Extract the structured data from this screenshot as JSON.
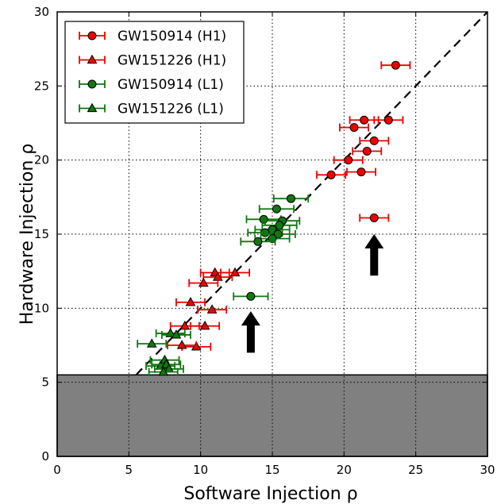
{
  "chart_data": {
    "type": "scatter",
    "xlabel": "Software Injection ρ",
    "ylabel": "Hardware Injection ρ",
    "xlim": [
      0,
      30
    ],
    "ylim": [
      0,
      30
    ],
    "x_ticks": [
      "0",
      "5",
      "10",
      "15",
      "20",
      "25",
      "30"
    ],
    "y_ticks": [
      "0",
      "5",
      "10",
      "15",
      "20",
      "25",
      "30"
    ],
    "grid": true,
    "legend_position": "top-left",
    "reference_line": {
      "style": "dashed",
      "color": "#000000",
      "from": [
        5.5,
        5.5
      ],
      "to": [
        30,
        30
      ]
    },
    "shaded_region": {
      "y_min": 0,
      "y_max": 5.5,
      "color": "#808080"
    },
    "arrows": [
      {
        "x": 13.5,
        "y_from": 7.0,
        "y_to": 9.8
      },
      {
        "x": 22.1,
        "y_from": 12.2,
        "y_to": 15.0
      }
    ],
    "series": [
      {
        "name": "GW150914 (H1)",
        "marker": "circle",
        "color": "#ee0000",
        "points": [
          {
            "x": 23.6,
            "y": 26.4,
            "xerr": 1.0
          },
          {
            "x": 21.4,
            "y": 22.7,
            "xerr": 1.0
          },
          {
            "x": 23.1,
            "y": 22.7,
            "xerr": 1.0
          },
          {
            "x": 20.7,
            "y": 22.2,
            "xerr": 1.0
          },
          {
            "x": 22.1,
            "y": 21.3,
            "xerr": 1.0
          },
          {
            "x": 21.6,
            "y": 20.6,
            "xerr": 1.0
          },
          {
            "x": 20.3,
            "y": 20.0,
            "xerr": 1.0
          },
          {
            "x": 19.1,
            "y": 19.0,
            "xerr": 1.0
          },
          {
            "x": 21.2,
            "y": 19.2,
            "xerr": 1.0
          },
          {
            "x": 22.1,
            "y": 16.1,
            "xerr": 1.0
          }
        ]
      },
      {
        "name": "GW151226 (H1)",
        "marker": "triangle",
        "color": "#ee0000",
        "points": [
          {
            "x": 12.4,
            "y": 12.4,
            "xerr": 1.0
          },
          {
            "x": 11.0,
            "y": 12.4,
            "xerr": 1.0
          },
          {
            "x": 11.2,
            "y": 12.1,
            "xerr": 1.0
          },
          {
            "x": 10.2,
            "y": 11.7,
            "xerr": 1.0
          },
          {
            "x": 9.3,
            "y": 10.4,
            "xerr": 1.0
          },
          {
            "x": 10.8,
            "y": 9.9,
            "xerr": 1.0
          },
          {
            "x": 8.9,
            "y": 8.8,
            "xerr": 1.0
          },
          {
            "x": 10.3,
            "y": 8.8,
            "xerr": 1.0
          },
          {
            "x": 9.7,
            "y": 7.4,
            "xerr": 1.0
          },
          {
            "x": 8.7,
            "y": 7.5,
            "xerr": 1.0
          }
        ]
      },
      {
        "name": "GW150914 (L1)",
        "marker": "circle",
        "color": "#117711",
        "points": [
          {
            "x": 16.3,
            "y": 17.4,
            "xerr": 1.2
          },
          {
            "x": 15.3,
            "y": 16.7,
            "xerr": 1.2
          },
          {
            "x": 14.4,
            "y": 16.0,
            "xerr": 1.2
          },
          {
            "x": 15.7,
            "y": 15.9,
            "xerr": 1.2
          },
          {
            "x": 15.5,
            "y": 15.6,
            "xerr": 1.2
          },
          {
            "x": 15.0,
            "y": 15.3,
            "xerr": 1.2
          },
          {
            "x": 14.5,
            "y": 15.1,
            "xerr": 1.2
          },
          {
            "x": 15.4,
            "y": 15.0,
            "xerr": 1.2
          },
          {
            "x": 15.0,
            "y": 14.7,
            "xerr": 1.2
          },
          {
            "x": 14.0,
            "y": 14.5,
            "xerr": 1.2
          },
          {
            "x": 13.5,
            "y": 10.8,
            "xerr": 1.2
          }
        ]
      },
      {
        "name": "GW151226 (L1)",
        "marker": "triangle",
        "color": "#117711",
        "points": [
          {
            "x": 6.6,
            "y": 7.6,
            "xerr": 1.0
          },
          {
            "x": 7.9,
            "y": 8.3,
            "xerr": 1.0
          },
          {
            "x": 8.3,
            "y": 8.2,
            "xerr": 1.0
          },
          {
            "x": 7.5,
            "y": 6.5,
            "xerr": 1.0
          },
          {
            "x": 7.2,
            "y": 6.1,
            "xerr": 1.0
          },
          {
            "x": 7.6,
            "y": 6.2,
            "xerr": 1.0
          },
          {
            "x": 7.8,
            "y": 5.9,
            "xerr": 1.0
          },
          {
            "x": 7.4,
            "y": 5.7,
            "xerr": 1.0
          }
        ]
      }
    ]
  }
}
